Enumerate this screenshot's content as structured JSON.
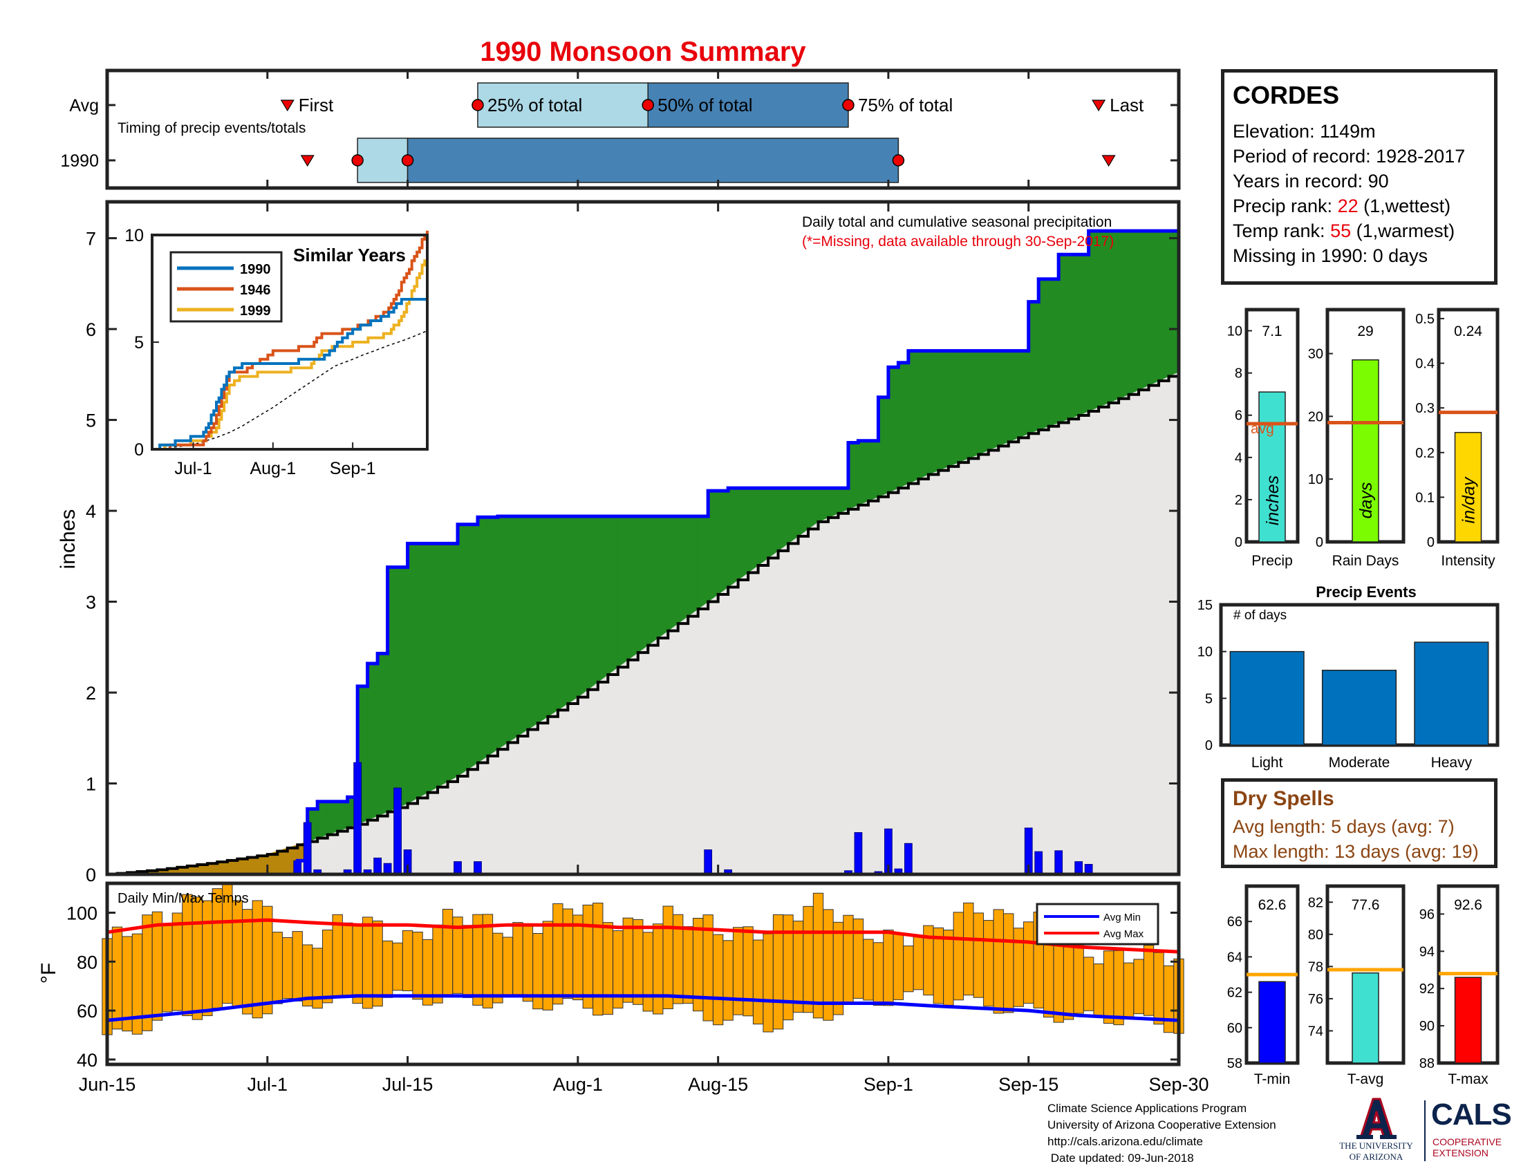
{
  "title": "1990 Monsoon Summary",
  "colors": {
    "title_red": "#e8000b",
    "cum_avg_fill": "#e8e7e6",
    "above_avg_fill": "#228b22",
    "below_avg_fill": "#b8860b",
    "cum_1990_line": "#0000ff",
    "daily_bar": "#0000ff",
    "temp_bar": "#ffa500",
    "avg_min_line": "#0000ff",
    "avg_max_line": "#ff0000",
    "timing_light": "#add8e6",
    "timing_dark": "#4682b4",
    "avg_line": "#d95319",
    "dry_spell_brown": "#8b4513"
  },
  "timing": {
    "caption": "Timing of precip events/totals",
    "rows": [
      "Avg",
      "1990"
    ],
    "avg_labels": {
      "first": "First",
      "p25": "25% of total",
      "p50": "50% of total",
      "p75": "75% of total",
      "last": "Last"
    },
    "avg": {
      "first": "Jul-3",
      "p25": "Jul-22",
      "p50": "Aug-8",
      "p75": "Aug-28",
      "last": "Sep-22"
    },
    "y1990": {
      "first": "Jul-5",
      "p25": "Jul-10",
      "p50": "Jul-15",
      "p75": "Sep-2",
      "last": "Sep-23"
    }
  },
  "station": {
    "name": "CORDES",
    "elevation": "Elevation: 1149m",
    "period": "Period of record: 1928-2017",
    "years": "Years in record: 90",
    "precip_rank_label": "Precip rank: ",
    "precip_rank_value": "22",
    "precip_rank_note": " (1,wettest)",
    "temp_rank_label": "Temp rank: ",
    "temp_rank_value": "55",
    "temp_rank_note": " (1,warmest)",
    "missing": "Missing in 1990: 0 days"
  },
  "main_chart": {
    "annotation_line1": "Daily total and cumulative seasonal precipitation",
    "annotation_line2": "(*=Missing, data available through 30-Sep-2017)",
    "ylabel": "inches",
    "yticks": [
      "0",
      "1",
      "2",
      "3",
      "4",
      "5",
      "6",
      "7"
    ],
    "ylim": [
      0,
      7.4
    ],
    "xticks": [
      "Jun-15",
      "Jul-1",
      "Jul-15",
      "Aug-1",
      "Aug-15",
      "Sep-1",
      "Sep-15",
      "Sep-30"
    ]
  },
  "inset": {
    "title": "Similar Years",
    "yticks": [
      "0",
      "5",
      "10"
    ],
    "xticks": [
      "Jul-1",
      "Aug-1",
      "Sep-1"
    ],
    "legend": [
      {
        "name": "1990",
        "color": "#0072bd"
      },
      {
        "name": "1946",
        "color": "#d95319"
      },
      {
        "name": "1999",
        "color": "#edb120"
      }
    ]
  },
  "temps": {
    "caption": "Daily Min/Max Temps",
    "ylabel": "°F",
    "yticks": [
      "40",
      "60",
      "80",
      "100"
    ],
    "ylim": [
      38,
      112
    ],
    "legend": [
      {
        "name": "Avg Min",
        "color": "#0000ff"
      },
      {
        "name": "Avg Max",
        "color": "#ff0000"
      }
    ]
  },
  "small_bars": [
    {
      "label": "Precip",
      "value_text": "7.1",
      "value": 7.1,
      "avg": 5.6,
      "avg_label": "avg",
      "bar_text": "inches",
      "color": "#40e0d0",
      "ymax": 11,
      "ticks": [
        "0",
        "2",
        "4",
        "6",
        "8",
        "10"
      ]
    },
    {
      "label": "Rain Days",
      "value_text": "29",
      "value": 29,
      "avg": 19,
      "bar_text": "days",
      "color": "#7cfc00",
      "ymax": 37,
      "ticks": [
        "0",
        "10",
        "20",
        "30"
      ]
    },
    {
      "label": "Intensity",
      "value_text": "0.24",
      "value": 0.245,
      "avg": 0.29,
      "bar_text": "in/day",
      "color": "#ffd700",
      "ymax": 0.52,
      "ticks": [
        "0",
        "0.1",
        "0.2",
        "0.3",
        "0.4",
        "0.5"
      ]
    }
  ],
  "precip_events": {
    "title": "Precip Events",
    "ylabel": "# of days",
    "categories": [
      "Light",
      "Moderate",
      "Heavy"
    ],
    "values": [
      10,
      8,
      11
    ],
    "ymax": 15,
    "ticks": [
      "0",
      "5",
      "10",
      "15"
    ],
    "color": "#0072bd"
  },
  "dry_spells": {
    "title": "Dry Spells",
    "avg_length": "Avg length: 5 days (avg: 7)",
    "max_length": "Max length: 13 days (avg: 19)"
  },
  "temp_bars": [
    {
      "label": "T-min",
      "value_text": "62.6",
      "value": 62.6,
      "avg": 63.0,
      "color": "#0000ff",
      "ymin": 58,
      "ymax": 68,
      "ticks": [
        "58",
        "60",
        "62",
        "64",
        "66"
      ]
    },
    {
      "label": "T-avg",
      "value_text": "77.6",
      "value": 77.6,
      "avg": 77.8,
      "color": "#40e0d0",
      "ymin": 72,
      "ymax": 83,
      "ticks": [
        "74",
        "76",
        "78",
        "80",
        "82"
      ]
    },
    {
      "label": "T-max",
      "value_text": "92.6",
      "value": 92.6,
      "avg": 92.8,
      "color": "#ff0000",
      "ymin": 88,
      "ymax": 97.5,
      "ticks": [
        "88",
        "90",
        "92",
        "94",
        "96"
      ]
    }
  ],
  "footer": {
    "line1": "Climate Science Applications Program",
    "line2": "University of Arizona Cooperative Extension",
    "line3": "http://cals.arizona.edu/climate",
    "line4": " Date updated: 09-Jun-2018"
  },
  "logos": {
    "ua_line1": "THE UNIVERSITY",
    "ua_line2": "OF ARIZONA",
    "cals": "CALS",
    "cals_sub1": "COOPERATIVE",
    "cals_sub2": "EXTENSION"
  },
  "chart_data": [
    {
      "type": "area",
      "title": "Daily total and cumulative seasonal precipitation",
      "ylabel": "inches",
      "ylim": [
        0,
        7.4
      ],
      "x_range": [
        "Jun-15",
        "Sep-30"
      ],
      "series": [
        {
          "name": "1990",
          "x": [
            "Jun-15",
            "Jul-4",
            "Jul-5",
            "Jul-6",
            "Jul-9",
            "Jul-10",
            "Jul-11",
            "Jul-12",
            "Jul-13",
            "Jul-15",
            "Jul-20",
            "Jul-22",
            "Jul-24",
            "Aug-14",
            "Aug-16",
            "Aug-28",
            "Aug-29",
            "Aug-31",
            "Sep-1",
            "Sep-2",
            "Sep-3",
            "Sep-15",
            "Sep-16",
            "Sep-18",
            "Sep-21",
            "Sep-30"
          ],
          "values": [
            0.0,
            0.15,
            0.72,
            0.8,
            0.85,
            2.07,
            2.32,
            2.43,
            3.38,
            3.64,
            3.85,
            3.93,
            3.94,
            4.22,
            4.25,
            4.75,
            4.77,
            5.25,
            5.58,
            5.63,
            5.76,
            6.3,
            6.55,
            6.82,
            7.08,
            7.08
          ]
        },
        {
          "name": "Avg",
          "x": [
            "Jun-15",
            "Jun-20",
            "Jun-25",
            "Jul-1",
            "Jul-5",
            "Jul-10",
            "Jul-15",
            "Jul-20",
            "Jul-25",
            "Aug-1",
            "Aug-5",
            "Aug-10",
            "Aug-15",
            "Aug-20",
            "Aug-25",
            "Sep-1",
            "Sep-5",
            "Sep-10",
            "Sep-15",
            "Sep-20",
            "Sep-25",
            "Sep-30"
          ],
          "values": [
            0.0,
            0.05,
            0.12,
            0.22,
            0.36,
            0.55,
            0.78,
            1.08,
            1.45,
            1.95,
            2.28,
            2.68,
            3.08,
            3.48,
            3.88,
            4.2,
            4.4,
            4.62,
            4.85,
            5.05,
            5.28,
            5.53
          ]
        }
      ],
      "daily": {
        "x": [
          "Jul-4",
          "Jul-5",
          "Jul-6",
          "Jul-9",
          "Jul-10",
          "Jul-11",
          "Jul-12",
          "Jul-13",
          "Jul-14",
          "Jul-15",
          "Jul-20",
          "Jul-22",
          "Aug-14",
          "Aug-16",
          "Aug-28",
          "Aug-29",
          "Aug-31",
          "Sep-1",
          "Sep-2",
          "Sep-3",
          "Sep-15",
          "Sep-16",
          "Sep-18",
          "Sep-20",
          "Sep-21"
        ],
        "values": [
          0.15,
          0.57,
          0.05,
          0.05,
          1.23,
          0.05,
          0.18,
          0.12,
          0.95,
          0.27,
          0.14,
          0.14,
          0.27,
          0.05,
          0.04,
          0.46,
          0.03,
          0.5,
          0.06,
          0.34,
          0.51,
          0.25,
          0.26,
          0.14,
          0.11
        ]
      }
    },
    {
      "type": "line",
      "title": "Similar Years",
      "ylim": [
        0,
        10
      ],
      "x": [
        "Jun-15",
        "Jul-5",
        "Jul-10",
        "Jul-15",
        "Jul-20",
        "Aug-1",
        "Aug-15",
        "Aug-20",
        "Sep-1",
        "Sep-10",
        "Sep-15",
        "Sep-20",
        "Sep-30"
      ],
      "series": [
        {
          "name": "1990",
          "values": [
            0,
            0.7,
            2.1,
            3.6,
            3.9,
            3.9,
            4.2,
            4.2,
            5.6,
            6.0,
            6.3,
            7.0,
            7.1
          ]
        },
        {
          "name": "1946",
          "values": [
            0,
            0.3,
            1.5,
            3.5,
            3.6,
            4.5,
            4.8,
            5.3,
            5.6,
            6.1,
            6.5,
            7.7,
            10.2
          ]
        },
        {
          "name": "1999",
          "values": [
            0,
            0.4,
            1.0,
            3.0,
            3.4,
            3.6,
            3.8,
            4.6,
            4.9,
            5.2,
            5.4,
            6.2,
            9.1
          ]
        }
      ]
    },
    {
      "type": "bar",
      "title": "Daily Min/Max Temps",
      "ylabel": "°F",
      "ylim": [
        38,
        112
      ],
      "x": [
        "Jun-15",
        "Jun-20",
        "Jun-25",
        "Jul-1",
        "Jul-5",
        "Jul-10",
        "Jul-15",
        "Jul-20",
        "Jul-25",
        "Aug-1",
        "Aug-5",
        "Aug-10",
        "Aug-15",
        "Aug-20",
        "Aug-25",
        "Sep-1",
        "Sep-5",
        "Sep-10",
        "Sep-15",
        "Sep-20",
        "Sep-25",
        "Sep-30"
      ],
      "tmax": [
        85,
        101,
        107,
        102,
        87,
        96,
        92,
        96,
        95,
        100,
        97,
        99,
        91,
        96,
        101,
        92,
        88,
        104,
        97,
        84,
        85,
        78
      ],
      "tmin": [
        48,
        56,
        60,
        60,
        64,
        63,
        66,
        64,
        64,
        62,
        60,
        62,
        57,
        54,
        58,
        65,
        66,
        63,
        60,
        57,
        57,
        53
      ],
      "avg_max": [
        92,
        95,
        96,
        97,
        96,
        95,
        95,
        94,
        95,
        95,
        94,
        94,
        93,
        92,
        92,
        92,
        90,
        89,
        88,
        86,
        85,
        84
      ],
      "avg_min": [
        56,
        58,
        60,
        63,
        65,
        66,
        66,
        66,
        66,
        66,
        66,
        66,
        65,
        64,
        63,
        63,
        62,
        61,
        60,
        58,
        57,
        56
      ]
    },
    {
      "type": "bar",
      "title": "Precip Events",
      "categories": [
        "Light",
        "Moderate",
        "Heavy"
      ],
      "values": [
        10,
        8,
        11
      ]
    }
  ]
}
